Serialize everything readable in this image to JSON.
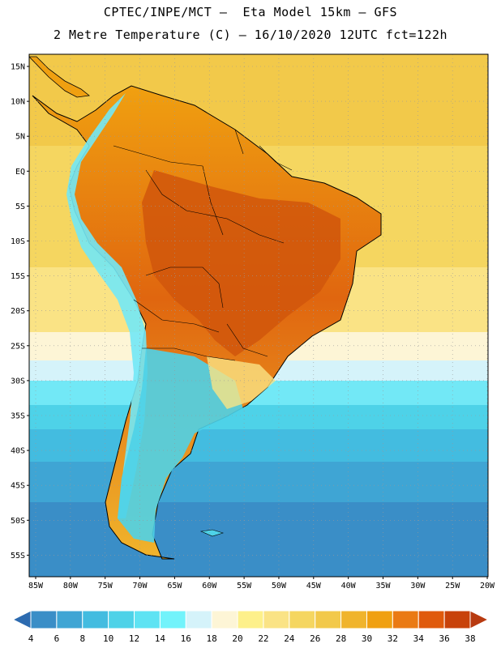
{
  "header": {
    "title_line1": "CPTEC/INPE/MCT –  Eta Model 15km – GFS",
    "title_line2": "2 Metre Temperature (C) – 16/10/2020 12UTC fct=122h"
  },
  "map": {
    "lat_labels": [
      "15N",
      "10N",
      "5N",
      "EQ",
      "5S",
      "10S",
      "15S",
      "20S",
      "25S",
      "30S",
      "35S",
      "40S",
      "45S",
      "50S",
      "55S"
    ],
    "lon_labels": [
      "85W",
      "80W",
      "75W",
      "70W",
      "65W",
      "60W",
      "55W",
      "50W",
      "45W",
      "40W",
      "35W",
      "30W",
      "25W",
      "20W"
    ],
    "ocean_bands": [
      {
        "temp": 30,
        "color": "#f2c94a"
      },
      {
        "temp": 28,
        "color": "#f5d660"
      },
      {
        "temp": 26,
        "color": "#fae385"
      },
      {
        "temp": 22,
        "color": "#fdf5d6"
      },
      {
        "temp": 20,
        "color": "#d5f3fa"
      },
      {
        "temp": 18,
        "color": "#72e8f6"
      },
      {
        "temp": 14,
        "color": "#4ed2e8"
      },
      {
        "temp": 12,
        "color": "#43bce0"
      },
      {
        "temp": 10,
        "color": "#3fa5d4"
      },
      {
        "temp": 8,
        "color": "#3a8ec7"
      }
    ]
  },
  "colorbar": {
    "labels": [
      "4",
      "6",
      "8",
      "10",
      "12",
      "14",
      "16",
      "18",
      "20",
      "22",
      "24",
      "26",
      "28",
      "30",
      "32",
      "34",
      "36",
      "38"
    ],
    "colors": [
      "#2d6bb0",
      "#3a8ec7",
      "#3fa5d4",
      "#43bce0",
      "#4ed2e8",
      "#5ee3f3",
      "#72f3fb",
      "#d5f3fa",
      "#fdf5d6",
      "#fdf08a",
      "#fae385",
      "#f5d660",
      "#f2c94a",
      "#f0b42c",
      "#f0a010",
      "#ea7a14",
      "#e05a0c",
      "#c8420a",
      "#b83a10"
    ]
  }
}
